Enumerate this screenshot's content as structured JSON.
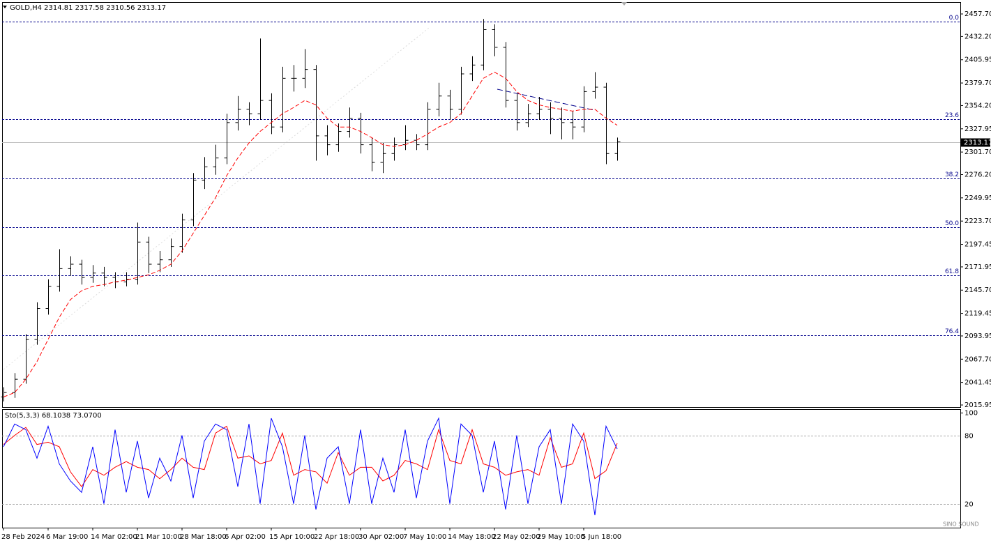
{
  "chart_data": {
    "type": "ohlc",
    "header": "GOLD,H4  2314.81 2317.58 2310.56 2313.17",
    "watermark": "SINO SOUND",
    "bar_color": "#000000",
    "categories": [
      "28 Feb 2024",
      null,
      null,
      null,
      "6 Mar 19:00",
      null,
      null,
      null,
      "14 Mar 02:00",
      null,
      null,
      null,
      "21 Mar 10:00",
      null,
      null,
      null,
      "28 Mar 18:00",
      null,
      null,
      null,
      "6 Apr 02:00",
      null,
      null,
      null,
      "15 Apr 10:00",
      null,
      null,
      null,
      "22 Apr 18:00",
      null,
      null,
      null,
      "30 Apr 02:00",
      null,
      null,
      null,
      "7 May 10:00",
      null,
      null,
      null,
      "14 May 18:00",
      null,
      null,
      null,
      "22 May 02:00",
      null,
      null,
      null,
      "29 May 10:00",
      null,
      null,
      null,
      "5 Jun 18:00",
      null,
      null,
      null
    ],
    "open": [
      2025,
      2030,
      2045,
      2090,
      2125,
      2150,
      2170,
      2175,
      2160,
      2165,
      2160,
      2155,
      2158,
      2200,
      2175,
      2180,
      2195,
      2225,
      2270,
      2285,
      2295,
      2335,
      2350,
      2345,
      2360,
      2330,
      2385,
      2385,
      2395,
      2320,
      2310,
      2325,
      2340,
      2310,
      2290,
      2300,
      2310,
      2315,
      2310,
      2350,
      2365,
      2350,
      2390,
      2400,
      2440,
      2420,
      2360,
      2335,
      2345,
      2350,
      2340,
      2335,
      2330,
      2370,
      2375,
      2300
    ],
    "high": [
      2036,
      2052,
      2096,
      2132,
      2158,
      2192,
      2184,
      2180,
      2174,
      2172,
      2166,
      2166,
      2222,
      2206,
      2190,
      2204,
      2232,
      2278,
      2296,
      2310,
      2345,
      2365,
      2358,
      2430,
      2368,
      2398,
      2400,
      2418,
      2400,
      2332,
      2334,
      2352,
      2346,
      2318,
      2312,
      2318,
      2332,
      2322,
      2358,
      2380,
      2372,
      2398,
      2410,
      2452,
      2446,
      2426,
      2368,
      2356,
      2364,
      2358,
      2352,
      2348,
      2376,
      2392,
      2380,
      2318
    ],
    "low": [
      2020,
      2024,
      2040,
      2084,
      2118,
      2144,
      2162,
      2152,
      2154,
      2150,
      2148,
      2150,
      2152,
      2165,
      2166,
      2172,
      2188,
      2218,
      2260,
      2276,
      2288,
      2326,
      2332,
      2338,
      2322,
      2324,
      2370,
      2374,
      2292,
      2298,
      2302,
      2318,
      2300,
      2280,
      2278,
      2292,
      2304,
      2304,
      2304,
      2342,
      2338,
      2344,
      2382,
      2394,
      2410,
      2352,
      2326,
      2330,
      2338,
      2322,
      2316,
      2316,
      2324,
      2362,
      2288,
      2292
    ],
    "close": [
      2030,
      2045,
      2090,
      2125,
      2150,
      2170,
      2175,
      2160,
      2165,
      2160,
      2155,
      2158,
      2200,
      2175,
      2180,
      2195,
      2225,
      2270,
      2285,
      2295,
      2335,
      2350,
      2345,
      2360,
      2330,
      2385,
      2385,
      2395,
      2320,
      2310,
      2325,
      2340,
      2310,
      2290,
      2300,
      2310,
      2315,
      2310,
      2350,
      2365,
      2350,
      2390,
      2400,
      2440,
      2420,
      2360,
      2335,
      2345,
      2350,
      2340,
      2335,
      2330,
      2370,
      2375,
      2300,
      2313.17
    ],
    "ma": {
      "color": "#ff0000",
      "values": [
        2025,
        2030,
        2045,
        2065,
        2090,
        2115,
        2135,
        2145,
        2150,
        2152,
        2155,
        2157,
        2160,
        2163,
        2168,
        2175,
        2190,
        2210,
        2230,
        2250,
        2275,
        2295,
        2312,
        2325,
        2335,
        2345,
        2352,
        2360,
        2355,
        2340,
        2330,
        2330,
        2325,
        2318,
        2310,
        2308,
        2310,
        2315,
        2322,
        2330,
        2335,
        2345,
        2365,
        2385,
        2392,
        2385,
        2370,
        2360,
        2355,
        2352,
        2350,
        2348,
        2350,
        2350,
        2340,
        2332
      ]
    },
    "ylim": [
      2013.6,
      2471.1
    ],
    "yticks": [
      {
        "value": 2457.7,
        "label": "2457.70"
      },
      {
        "value": 2432.2,
        "label": "2432.20"
      },
      {
        "value": 2405.95,
        "label": "2405.95"
      },
      {
        "value": 2379.7,
        "label": "2379.70"
      },
      {
        "value": 2354.2,
        "label": "2354.20"
      },
      {
        "value": 2327.95,
        "label": "2327.95"
      },
      {
        "value": 2301.7,
        "label": "2301.70"
      },
      {
        "value": 2276.2,
        "label": "2276.20"
      },
      {
        "value": 2249.95,
        "label": "2249.95"
      },
      {
        "value": 2223.7,
        "label": "2223.70"
      },
      {
        "value": 2197.45,
        "label": "2197.45"
      },
      {
        "value": 2171.95,
        "label": "2171.95"
      },
      {
        "value": 2145.7,
        "label": "2145.70"
      },
      {
        "value": 2119.45,
        "label": "2119.45"
      },
      {
        "value": 2093.95,
        "label": "2093.95"
      },
      {
        "value": 2067.7,
        "label": "2067.70"
      },
      {
        "value": 2041.45,
        "label": "2041.45"
      },
      {
        "value": 2015.95,
        "label": "2015.95"
      }
    ],
    "fib_levels": [
      {
        "label": "0.0",
        "price": 2449.0
      },
      {
        "label": "23.6",
        "price": 2338.8
      },
      {
        "label": "38.2",
        "price": 2271.9
      },
      {
        "label": "50.0",
        "price": 2216.8
      },
      {
        "label": "61.8",
        "price": 2162.4
      },
      {
        "label": "76.4",
        "price": 2094.7
      }
    ],
    "fib_color": "#00008b",
    "indicator": {
      "type": "line",
      "label": "Sto(5,3,3) 68.1038 73.0700",
      "ylim": [
        -1,
        103
      ],
      "yticks": [
        100,
        80,
        20
      ],
      "series": [
        {
          "color": "#0000ff",
          "values": [
            70,
            90,
            85,
            60,
            88,
            55,
            40,
            30,
            70,
            20,
            85,
            30,
            75,
            25,
            60,
            40,
            80,
            25,
            75,
            90,
            85,
            35,
            90,
            20,
            95,
            70,
            20,
            80,
            15,
            60,
            70,
            20,
            85,
            20,
            60,
            30,
            85,
            25,
            75,
            95,
            20,
            90,
            80,
            30,
            75,
            15,
            80,
            20,
            70,
            85,
            20,
            90,
            75,
            10,
            88,
            68.1038
          ]
        },
        {
          "color": "#ff0000",
          "values": [
            72,
            80,
            87,
            72,
            74,
            70,
            48,
            35,
            50,
            45,
            52,
            57,
            52,
            50,
            42,
            50,
            60,
            52,
            50,
            82,
            88,
            60,
            62,
            55,
            58,
            82,
            45,
            50,
            48,
            38,
            65,
            45,
            52,
            52,
            40,
            45,
            58,
            55,
            50,
            85,
            58,
            55,
            85,
            55,
            52,
            45,
            48,
            50,
            45,
            78,
            52,
            55,
            82,
            42,
            49,
            73.07
          ]
        }
      ]
    }
  }
}
